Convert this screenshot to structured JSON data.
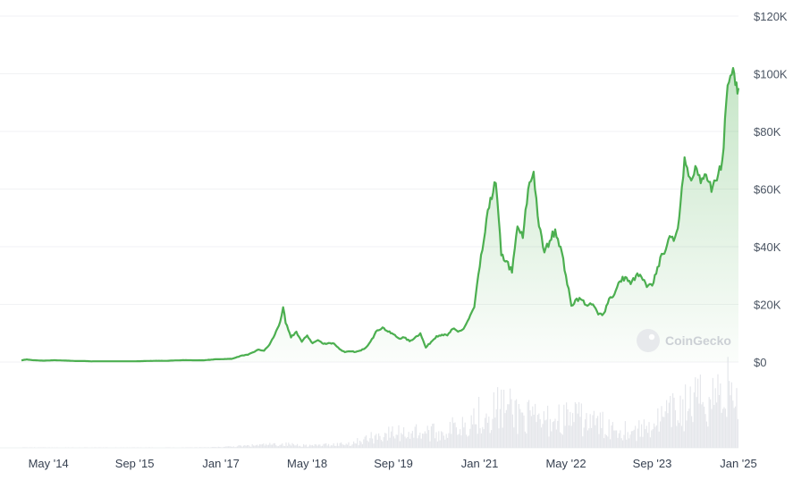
{
  "chart_data": {
    "type": "area",
    "title": "",
    "xlabel": "",
    "ylabel": "",
    "x_range": [
      "2013-12",
      "2025-01"
    ],
    "ylim": [
      0,
      120000
    ],
    "y_ticks": [
      {
        "value": 0,
        "label": "$0"
      },
      {
        "value": 20000,
        "label": "$20K"
      },
      {
        "value": 40000,
        "label": "$40K"
      },
      {
        "value": 60000,
        "label": "$60K"
      },
      {
        "value": 80000,
        "label": "$80K"
      },
      {
        "value": 100000,
        "label": "$100K"
      },
      {
        "value": 120000,
        "label": "$120K"
      }
    ],
    "x_ticks": [
      {
        "date": "2014-05",
        "label": "May '14"
      },
      {
        "date": "2015-09",
        "label": "Sep '15"
      },
      {
        "date": "2017-01",
        "label": "Jan '17"
      },
      {
        "date": "2018-05",
        "label": "May '18"
      },
      {
        "date": "2019-09",
        "label": "Sep '19"
      },
      {
        "date": "2021-01",
        "label": "Jan '21"
      },
      {
        "date": "2022-05",
        "label": "May '22"
      },
      {
        "date": "2023-09",
        "label": "Sep '23"
      },
      {
        "date": "2025-01",
        "label": "Jan '25"
      }
    ],
    "grid": true,
    "y_axis_position": "right",
    "line_color": "#4caf50",
    "fill_color": "#4caf50",
    "volume_color": "#e5e7eb",
    "watermark": "CoinGecko",
    "series": [
      {
        "kind": "price",
        "points": [
          [
            "2013-12",
            600
          ],
          [
            "2014-01",
            900
          ],
          [
            "2014-02",
            650
          ],
          [
            "2014-04",
            450
          ],
          [
            "2014-06",
            620
          ],
          [
            "2014-08",
            500
          ],
          [
            "2014-10",
            350
          ],
          [
            "2014-12",
            320
          ],
          [
            "2015-01",
            230
          ],
          [
            "2015-03",
            260
          ],
          [
            "2015-06",
            240
          ],
          [
            "2015-09",
            235
          ],
          [
            "2015-11",
            350
          ],
          [
            "2016-01",
            420
          ],
          [
            "2016-03",
            415
          ],
          [
            "2016-06",
            650
          ],
          [
            "2016-08",
            580
          ],
          [
            "2016-10",
            620
          ],
          [
            "2016-12",
            950
          ],
          [
            "2017-01",
            1000
          ],
          [
            "2017-03",
            1100
          ],
          [
            "2017-05",
            2300
          ],
          [
            "2017-06",
            2500
          ],
          [
            "2017-08",
            4300
          ],
          [
            "2017-09",
            3900
          ],
          [
            "2017-10",
            6000
          ],
          [
            "2017-11",
            9500
          ],
          [
            "2017-12",
            14000
          ],
          [
            "2017-12-17",
            19000
          ],
          [
            "2018-01",
            13500
          ],
          [
            "2018-02",
            8500
          ],
          [
            "2018-03",
            10500
          ],
          [
            "2018-04",
            7000
          ],
          [
            "2018-05",
            9200
          ],
          [
            "2018-06",
            6500
          ],
          [
            "2018-07",
            7600
          ],
          [
            "2018-08",
            6300
          ],
          [
            "2018-09",
            6600
          ],
          [
            "2018-10",
            6400
          ],
          [
            "2018-11",
            4500
          ],
          [
            "2018-12",
            3400
          ],
          [
            "2019-01",
            3700
          ],
          [
            "2019-02",
            3500
          ],
          [
            "2019-03",
            4000
          ],
          [
            "2019-04",
            5200
          ],
          [
            "2019-05",
            8000
          ],
          [
            "2019-06",
            11000
          ],
          [
            "2019-07",
            12000
          ],
          [
            "2019-08",
            10500
          ],
          [
            "2019-09",
            9600
          ],
          [
            "2019-10",
            8200
          ],
          [
            "2019-11",
            8500
          ],
          [
            "2019-12",
            7200
          ],
          [
            "2020-01",
            8500
          ],
          [
            "2020-02",
            10000
          ],
          [
            "2020-03",
            5000
          ],
          [
            "2020-04",
            7000
          ],
          [
            "2020-05",
            9000
          ],
          [
            "2020-06",
            9500
          ],
          [
            "2020-07",
            9200
          ],
          [
            "2020-08",
            11500
          ],
          [
            "2020-09",
            10500
          ],
          [
            "2020-10",
            11500
          ],
          [
            "2020-11",
            15000
          ],
          [
            "2020-12",
            19000
          ],
          [
            "2021-01",
            33000
          ],
          [
            "2021-02",
            45000
          ],
          [
            "2021-03",
            57000
          ],
          [
            "2021-04",
            62000
          ],
          [
            "2021-05",
            37000
          ],
          [
            "2021-06",
            35000
          ],
          [
            "2021-07",
            31000
          ],
          [
            "2021-08",
            47000
          ],
          [
            "2021-09",
            43000
          ],
          [
            "2021-10",
            60000
          ],
          [
            "2021-11",
            66000
          ],
          [
            "2021-12",
            47000
          ],
          [
            "2022-01",
            38000
          ],
          [
            "2022-02",
            42000
          ],
          [
            "2022-03",
            46000
          ],
          [
            "2022-04",
            40000
          ],
          [
            "2022-05",
            30000
          ],
          [
            "2022-06",
            19500
          ],
          [
            "2022-07",
            22000
          ],
          [
            "2022-08",
            21500
          ],
          [
            "2022-09",
            19500
          ],
          [
            "2022-10",
            20000
          ],
          [
            "2022-11",
            16500
          ],
          [
            "2022-12",
            16800
          ],
          [
            "2023-01",
            22000
          ],
          [
            "2023-02",
            23500
          ],
          [
            "2023-03",
            28000
          ],
          [
            "2023-04",
            29500
          ],
          [
            "2023-05",
            27000
          ],
          [
            "2023-06",
            30000
          ],
          [
            "2023-07",
            29500
          ],
          [
            "2023-08",
            26000
          ],
          [
            "2023-09",
            26500
          ],
          [
            "2023-10",
            33000
          ],
          [
            "2023-11",
            37500
          ],
          [
            "2023-12",
            42500
          ],
          [
            "2024-01",
            42000
          ],
          [
            "2024-02",
            50000
          ],
          [
            "2024-03",
            71000
          ],
          [
            "2024-04",
            64000
          ],
          [
            "2024-05",
            68000
          ],
          [
            "2024-06",
            62000
          ],
          [
            "2024-07",
            65000
          ],
          [
            "2024-08",
            59000
          ],
          [
            "2024-09",
            63000
          ],
          [
            "2024-10",
            70000
          ],
          [
            "2024-11",
            96000
          ],
          [
            "2024-12",
            102000
          ],
          [
            "2024-12-20",
            97000
          ],
          [
            "2025-01",
            95000
          ]
        ]
      },
      {
        "kind": "volume",
        "points": [
          [
            "2013-12",
            0.5
          ],
          [
            "2014-06",
            0.3
          ],
          [
            "2015-06",
            0.3
          ],
          [
            "2016-06",
            0.4
          ],
          [
            "2017-01",
            1
          ],
          [
            "2017-12",
            5
          ],
          [
            "2018-06",
            3
          ],
          [
            "2019-01",
            6
          ],
          [
            "2019-07",
            18
          ],
          [
            "2020-01",
            22
          ],
          [
            "2020-06",
            20
          ],
          [
            "2021-01",
            45
          ],
          [
            "2021-05",
            55
          ],
          [
            "2021-12",
            35
          ],
          [
            "2022-06",
            42
          ],
          [
            "2022-12",
            30
          ],
          [
            "2023-06",
            22
          ],
          [
            "2024-03",
            55
          ],
          [
            "2024-11",
            80
          ],
          [
            "2025-01",
            60
          ]
        ]
      }
    ]
  }
}
